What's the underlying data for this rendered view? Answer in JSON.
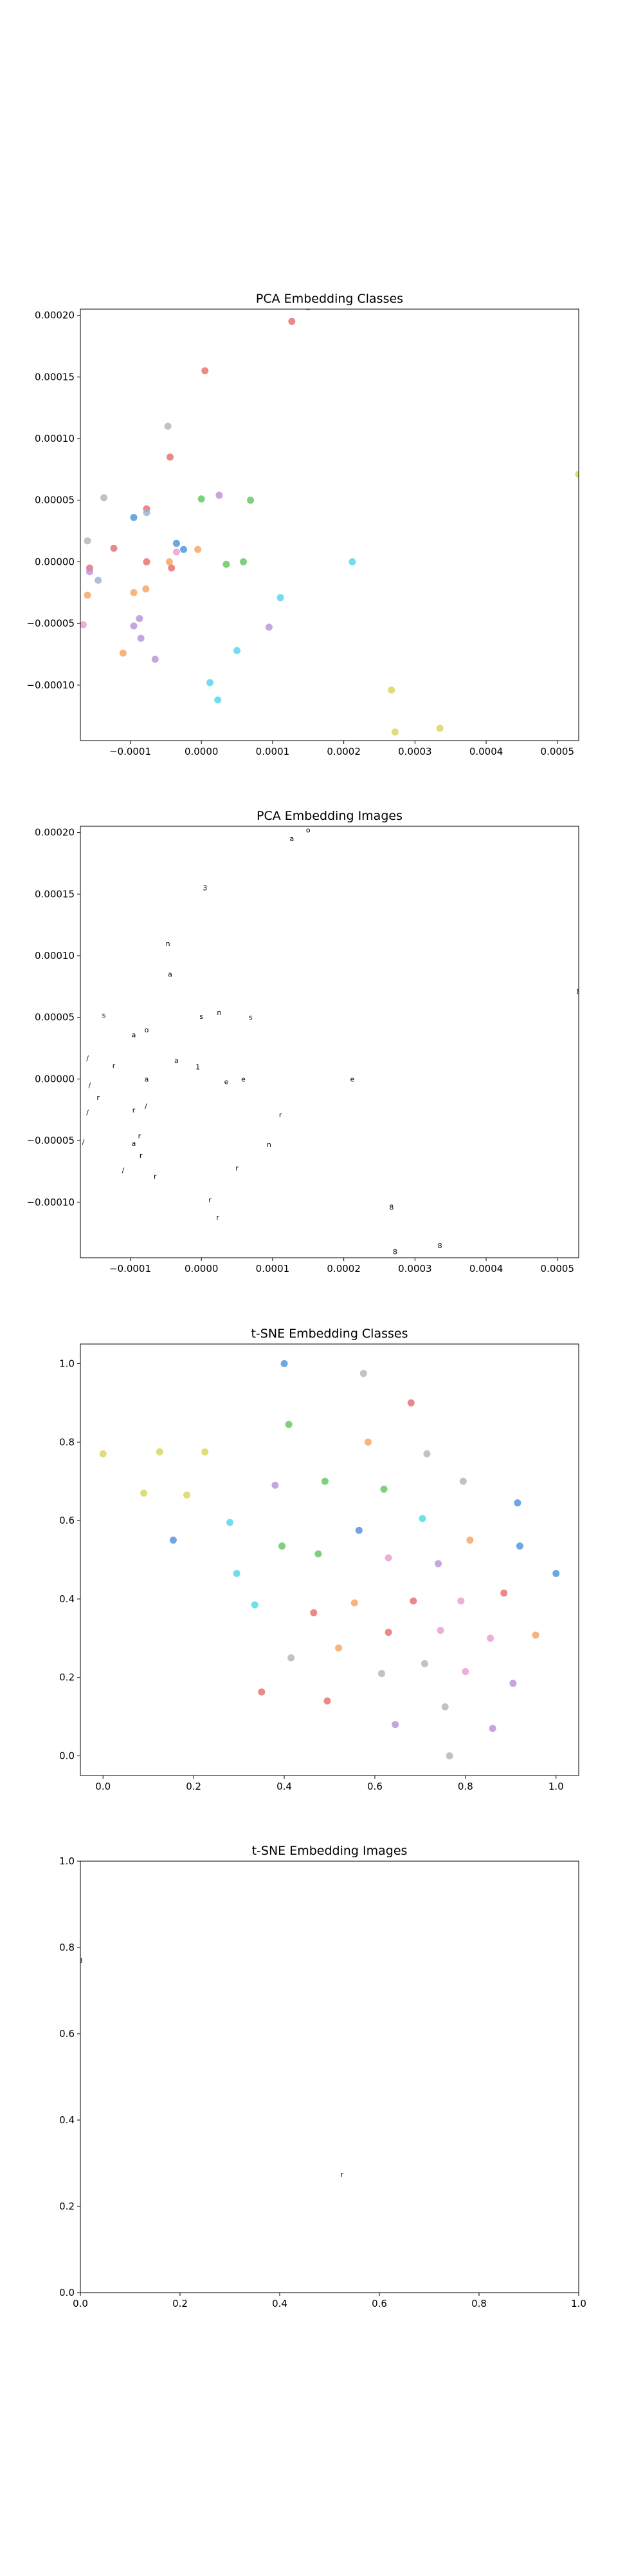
{
  "chart_data": [
    {
      "type": "scatter",
      "title": "PCA Embedding Classes",
      "xlabel": "",
      "ylabel": "",
      "xlim": [
        -0.00017,
        0.00053
      ],
      "ylim": [
        -0.000145,
        0.000205
      ],
      "xticks": [
        -0.0001,
        0.0,
        0.0001,
        0.0002,
        0.0003,
        0.0004,
        0.0005
      ],
      "xtick_labels": [
        "−0.0001",
        "0.0000",
        "0.0001",
        "0.0002",
        "0.0003",
        "0.0004",
        "0.0005"
      ],
      "yticks": [
        -0.0001,
        -5e-05,
        0.0,
        5e-05,
        0.0001,
        0.00015,
        0.0002
      ],
      "ytick_labels": [
        "−0.00010",
        "−0.00005",
        "0.00000",
        "0.00005",
        "0.00010",
        "0.00015",
        "0.00020"
      ],
      "grid": false,
      "points": [
        {
          "x": 0.00015,
          "y": 0.000207,
          "color": "#4a90d9"
        },
        {
          "x": 0.000127,
          "y": 0.000195,
          "color": "#e86a6a"
        },
        {
          "x": 5e-06,
          "y": 0.000155,
          "color": "#e86a6a"
        },
        {
          "x": -4.7e-05,
          "y": 0.00011,
          "color": "#b3b3b3"
        },
        {
          "x": -4.4e-05,
          "y": 8.5e-05,
          "color": "#e86a6a"
        },
        {
          "x": 2.5e-05,
          "y": 5.4e-05,
          "color": "#b98ed6"
        },
        {
          "x": -0.000137,
          "y": 5.2e-05,
          "color": "#b3b3b3"
        },
        {
          "x": 0.0,
          "y": 5.1e-05,
          "color": "#5ec45e"
        },
        {
          "x": 6.9e-05,
          "y": 5e-05,
          "color": "#5ec45e"
        },
        {
          "x": -7.7e-05,
          "y": 4.3e-05,
          "color": "#e86a6a"
        },
        {
          "x": -7.7e-05,
          "y": 4e-05,
          "color": "#9bb0d4"
        },
        {
          "x": -9.5e-05,
          "y": 3.6e-05,
          "color": "#4a90d9"
        },
        {
          "x": -0.00016,
          "y": 1.7e-05,
          "color": "#b3b3b3"
        },
        {
          "x": -3.5e-05,
          "y": 1.5e-05,
          "color": "#4a90d9"
        },
        {
          "x": -0.000123,
          "y": 1.1e-05,
          "color": "#e86a6a"
        },
        {
          "x": -2.5e-05,
          "y": 1e-05,
          "color": "#4a90d9"
        },
        {
          "x": -5e-06,
          "y": 1e-05,
          "color": "#f5a35a"
        },
        {
          "x": -3.5e-05,
          "y": 8e-06,
          "color": "#e89ad0"
        },
        {
          "x": 5.9e-05,
          "y": 0.0,
          "color": "#5ec45e"
        },
        {
          "x": 0.000212,
          "y": 0.0,
          "color": "#4fd6e8"
        },
        {
          "x": -4.5e-05,
          "y": 0.0,
          "color": "#f5a35a"
        },
        {
          "x": -7.7e-05,
          "y": 0.0,
          "color": "#e86a6a"
        },
        {
          "x": 3.5e-05,
          "y": -2e-06,
          "color": "#5ec45e"
        },
        {
          "x": -0.000157,
          "y": -5e-06,
          "color": "#e86a6a"
        },
        {
          "x": -4.2e-05,
          "y": -5e-06,
          "color": "#e86a6a"
        },
        {
          "x": -0.000157,
          "y": -8e-06,
          "color": "#b98ed6"
        },
        {
          "x": -0.000145,
          "y": -1.5e-05,
          "color": "#9bb0d4"
        },
        {
          "x": -7.8e-05,
          "y": -2.2e-05,
          "color": "#f5a35a"
        },
        {
          "x": -9.5e-05,
          "y": -2.5e-05,
          "color": "#f5a35a"
        },
        {
          "x": -0.00016,
          "y": -2.7e-05,
          "color": "#f5a35a"
        },
        {
          "x": 0.000111,
          "y": -2.9e-05,
          "color": "#4fd6e8"
        },
        {
          "x": -8.7e-05,
          "y": -4.6e-05,
          "color": "#b98ed6"
        },
        {
          "x": -0.000166,
          "y": -5.1e-05,
          "color": "#e89ad0"
        },
        {
          "x": -9.5e-05,
          "y": -5.2e-05,
          "color": "#b98ed6"
        },
        {
          "x": 9.5e-05,
          "y": -5.3e-05,
          "color": "#b98ed6"
        },
        {
          "x": -8.5e-05,
          "y": -6.2e-05,
          "color": "#b98ed6"
        },
        {
          "x": -0.00011,
          "y": -7.4e-05,
          "color": "#f5a35a"
        },
        {
          "x": 5e-05,
          "y": -7.2e-05,
          "color": "#4fd6e8"
        },
        {
          "x": -6.5e-05,
          "y": -7.9e-05,
          "color": "#b98ed6"
        },
        {
          "x": 1.2e-05,
          "y": -9.8e-05,
          "color": "#4fd6e8"
        },
        {
          "x": 2.3e-05,
          "y": -0.000112,
          "color": "#4fd6e8"
        },
        {
          "x": 0.000267,
          "y": -0.000104,
          "color": "#d4d45a"
        },
        {
          "x": 0.000272,
          "y": -0.000138,
          "color": "#d4d45a"
        },
        {
          "x": 0.000335,
          "y": -0.000135,
          "color": "#d4d45a"
        },
        {
          "x": 0.00031,
          "y": -0.000148,
          "color": "#d4d45a"
        },
        {
          "x": 0.00053,
          "y": 7.1e-05,
          "color": "#d4d45a"
        }
      ]
    },
    {
      "type": "scatter",
      "title": "PCA Embedding Images",
      "xlabel": "",
      "ylabel": "",
      "xlim": [
        -0.00017,
        0.00053
      ],
      "ylim": [
        -0.000145,
        0.000205
      ],
      "xticks": [
        -0.0001,
        0.0,
        0.0001,
        0.0002,
        0.0003,
        0.0004,
        0.0005
      ],
      "xtick_labels": [
        "−0.0001",
        "0.0000",
        "0.0001",
        "0.0002",
        "0.0003",
        "0.0004",
        "0.0005"
      ],
      "yticks": [
        -0.0001,
        -5e-05,
        0.0,
        5e-05,
        0.0001,
        0.00015,
        0.0002
      ],
      "ytick_labels": [
        "−0.00010",
        "−0.00005",
        "0.00000",
        "0.00005",
        "0.00010",
        "0.00015",
        "0.00020"
      ],
      "grid": false,
      "marker": "image-thumbnails",
      "points": [
        {
          "x": 0.00015,
          "y": 0.000207,
          "label": "2"
        },
        {
          "x": 0.00015,
          "y": 0.000202,
          "label": "o"
        },
        {
          "x": 0.000127,
          "y": 0.000195,
          "label": "a"
        },
        {
          "x": 5e-06,
          "y": 0.000155,
          "label": "3"
        },
        {
          "x": -4.7e-05,
          "y": 0.00011,
          "label": "n"
        },
        {
          "x": -4.4e-05,
          "y": 8.5e-05,
          "label": "a"
        },
        {
          "x": 2.5e-05,
          "y": 5.4e-05,
          "label": "n"
        },
        {
          "x": -0.000137,
          "y": 5.2e-05,
          "label": "s"
        },
        {
          "x": 0.0,
          "y": 5.1e-05,
          "label": "s"
        },
        {
          "x": 6.9e-05,
          "y": 5e-05,
          "label": "s"
        },
        {
          "x": -7.7e-05,
          "y": 4e-05,
          "label": "o"
        },
        {
          "x": -9.5e-05,
          "y": 3.6e-05,
          "label": "a"
        },
        {
          "x": -0.00016,
          "y": 1.7e-05,
          "label": "/"
        },
        {
          "x": -3.5e-05,
          "y": 1.5e-05,
          "label": "a"
        },
        {
          "x": -0.000123,
          "y": 1.1e-05,
          "label": "r"
        },
        {
          "x": -5e-06,
          "y": 1e-05,
          "label": "1"
        },
        {
          "x": 5.9e-05,
          "y": 0.0,
          "label": "e"
        },
        {
          "x": 0.000212,
          "y": 0.0,
          "label": "e"
        },
        {
          "x": -7.7e-05,
          "y": 0.0,
          "label": "a"
        },
        {
          "x": 3.5e-05,
          "y": -2e-06,
          "label": "e"
        },
        {
          "x": -0.000157,
          "y": -5e-06,
          "label": "/"
        },
        {
          "x": -0.000145,
          "y": -1.5e-05,
          "label": "r"
        },
        {
          "x": -7.8e-05,
          "y": -2.2e-05,
          "label": "/"
        },
        {
          "x": -9.5e-05,
          "y": -2.5e-05,
          "label": "r"
        },
        {
          "x": -0.00016,
          "y": -2.7e-05,
          "label": "/"
        },
        {
          "x": 0.000111,
          "y": -2.9e-05,
          "label": "r"
        },
        {
          "x": -8.7e-05,
          "y": -4.6e-05,
          "label": "r"
        },
        {
          "x": -0.000166,
          "y": -5.1e-05,
          "label": "/"
        },
        {
          "x": -9.5e-05,
          "y": -5.2e-05,
          "label": "a"
        },
        {
          "x": 9.5e-05,
          "y": -5.3e-05,
          "label": "n"
        },
        {
          "x": -8.5e-05,
          "y": -6.2e-05,
          "label": "r"
        },
        {
          "x": -0.00011,
          "y": -7.4e-05,
          "label": "/"
        },
        {
          "x": 5e-05,
          "y": -7.2e-05,
          "label": "r"
        },
        {
          "x": -6.5e-05,
          "y": -7.9e-05,
          "label": "r"
        },
        {
          "x": 1.2e-05,
          "y": -9.8e-05,
          "label": "r"
        },
        {
          "x": 2.3e-05,
          "y": -0.000112,
          "label": "r"
        },
        {
          "x": 0.000267,
          "y": -0.000104,
          "label": "8"
        },
        {
          "x": 0.000272,
          "y": -0.00014,
          "label": "8"
        },
        {
          "x": 0.000335,
          "y": -0.000135,
          "label": "8"
        },
        {
          "x": 0.00031,
          "y": -0.000148,
          "label": "8"
        },
        {
          "x": 0.00053,
          "y": 7.1e-05,
          "label": "8"
        }
      ]
    },
    {
      "type": "scatter",
      "title": "t-SNE Embedding Classes",
      "xlabel": "",
      "ylabel": "",
      "xlim": [
        -0.05,
        1.05
      ],
      "ylim": [
        -0.05,
        1.05
      ],
      "xticks": [
        0.0,
        0.2,
        0.4,
        0.6,
        0.8,
        1.0
      ],
      "xtick_labels": [
        "0.0",
        "0.2",
        "0.4",
        "0.6",
        "0.8",
        "1.0"
      ],
      "yticks": [
        0.0,
        0.2,
        0.4,
        0.6,
        0.8,
        1.0
      ],
      "ytick_labels": [
        "0.0",
        "0.2",
        "0.4",
        "0.6",
        "0.8",
        "1.0"
      ],
      "grid": false,
      "points": [
        {
          "x": 0.0,
          "y": 0.77,
          "color": "#d4d45a"
        },
        {
          "x": 0.09,
          "y": 0.67,
          "color": "#d4d45a"
        },
        {
          "x": 0.125,
          "y": 0.775,
          "color": "#d4d45a"
        },
        {
          "x": 0.185,
          "y": 0.665,
          "color": "#d4d45a"
        },
        {
          "x": 0.225,
          "y": 0.775,
          "color": "#d4d45a"
        },
        {
          "x": 0.155,
          "y": 0.55,
          "color": "#4a90d9"
        },
        {
          "x": 0.28,
          "y": 0.595,
          "color": "#4fd6e8"
        },
        {
          "x": 0.295,
          "y": 0.465,
          "color": "#4fd6e8"
        },
        {
          "x": 0.335,
          "y": 0.385,
          "color": "#4fd6e8"
        },
        {
          "x": 0.35,
          "y": 0.163,
          "color": "#e86a6a"
        },
        {
          "x": 0.38,
          "y": 0.69,
          "color": "#b98ed6"
        },
        {
          "x": 0.395,
          "y": 0.535,
          "color": "#5ec45e"
        },
        {
          "x": 0.4,
          "y": 1.0,
          "color": "#4a90d9"
        },
        {
          "x": 0.41,
          "y": 0.845,
          "color": "#5ec45e"
        },
        {
          "x": 0.415,
          "y": 0.25,
          "color": "#b3b3b3"
        },
        {
          "x": 0.465,
          "y": 0.365,
          "color": "#e86a6a"
        },
        {
          "x": 0.475,
          "y": 0.515,
          "color": "#5ec45e"
        },
        {
          "x": 0.49,
          "y": 0.7,
          "color": "#5ec45e"
        },
        {
          "x": 0.495,
          "y": 0.14,
          "color": "#e86a6a"
        },
        {
          "x": 0.52,
          "y": 0.275,
          "color": "#f5a35a"
        },
        {
          "x": 0.555,
          "y": 0.39,
          "color": "#f5a35a"
        },
        {
          "x": 0.565,
          "y": 0.575,
          "color": "#4a90d9"
        },
        {
          "x": 0.575,
          "y": 0.975,
          "color": "#b3b3b3"
        },
        {
          "x": 0.585,
          "y": 0.8,
          "color": "#f5a35a"
        },
        {
          "x": 0.615,
          "y": 0.21,
          "color": "#b3b3b3"
        },
        {
          "x": 0.62,
          "y": 0.68,
          "color": "#5ec45e"
        },
        {
          "x": 0.63,
          "y": 0.315,
          "color": "#e86a6a"
        },
        {
          "x": 0.63,
          "y": 0.505,
          "color": "#e89ad0"
        },
        {
          "x": 0.645,
          "y": 0.08,
          "color": "#b98ed6"
        },
        {
          "x": 0.68,
          "y": 0.9,
          "color": "#e86a6a"
        },
        {
          "x": 0.685,
          "y": 0.395,
          "color": "#e86a6a"
        },
        {
          "x": 0.705,
          "y": 0.605,
          "color": "#4fd6e8"
        },
        {
          "x": 0.71,
          "y": 0.235,
          "color": "#b3b3b3"
        },
        {
          "x": 0.715,
          "y": 0.77,
          "color": "#b3b3b3"
        },
        {
          "x": 0.74,
          "y": 0.49,
          "color": "#b98ed6"
        },
        {
          "x": 0.745,
          "y": 0.32,
          "color": "#e89ad0"
        },
        {
          "x": 0.755,
          "y": 0.125,
          "color": "#b3b3b3"
        },
        {
          "x": 0.765,
          "y": 0.0,
          "color": "#b3b3b3"
        },
        {
          "x": 0.79,
          "y": 0.395,
          "color": "#e89ad0"
        },
        {
          "x": 0.795,
          "y": 0.7,
          "color": "#b3b3b3"
        },
        {
          "x": 0.8,
          "y": 0.215,
          "color": "#e89ad0"
        },
        {
          "x": 0.81,
          "y": 0.55,
          "color": "#f5a35a"
        },
        {
          "x": 0.855,
          "y": 0.3,
          "color": "#e89ad0"
        },
        {
          "x": 0.86,
          "y": 0.07,
          "color": "#b98ed6"
        },
        {
          "x": 0.885,
          "y": 0.415,
          "color": "#e86a6a"
        },
        {
          "x": 0.905,
          "y": 0.185,
          "color": "#b98ed6"
        },
        {
          "x": 0.915,
          "y": 0.645,
          "color": "#4a90d9"
        },
        {
          "x": 0.92,
          "y": 0.535,
          "color": "#4a90d9"
        },
        {
          "x": 0.955,
          "y": 0.308,
          "color": "#f5a35a"
        },
        {
          "x": 1.0,
          "y": 0.465,
          "color": "#4a90d9"
        }
      ]
    },
    {
      "type": "scatter",
      "title": "t-SNE Embedding Images",
      "xlabel": "",
      "ylabel": "",
      "xlim": [
        0.0,
        1.0
      ],
      "ylim": [
        0.0,
        1.0
      ],
      "xticks": [
        0.0,
        0.2,
        0.4,
        0.6,
        0.8,
        1.0
      ],
      "xtick_labels": [
        "0.0",
        "0.2",
        "0.4",
        "0.6",
        "0.8",
        "1.0"
      ],
      "yticks": [
        0.0,
        0.2,
        0.4,
        0.6,
        0.8,
        1.0
      ],
      "ytick_labels": [
        "0.0",
        "0.2",
        "0.4",
        "0.6",
        "0.8",
        "1.0"
      ],
      "grid": false,
      "marker": "image-thumbnails",
      "points": [
        {
          "x": 0.0,
          "y": 0.77,
          "label": "8"
        },
        {
          "x": 0.525,
          "y": 0.275,
          "label": "r"
        }
      ]
    }
  ]
}
